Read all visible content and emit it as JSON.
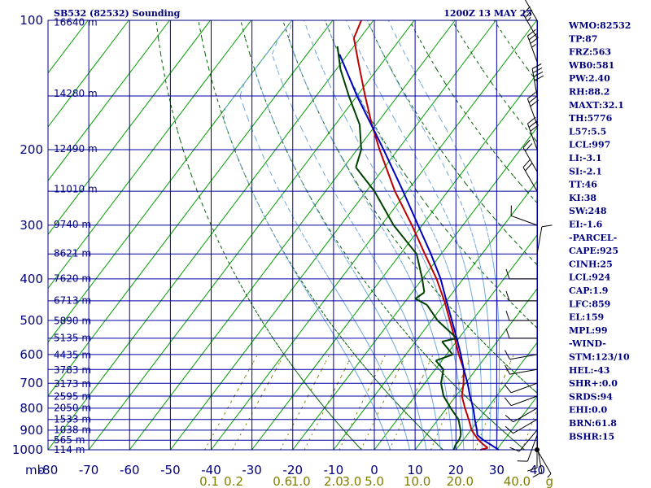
{
  "header": {
    "title": "SB532 (82532) Sounding",
    "valid_time": "1200Z 13 MAY 25"
  },
  "colors": {
    "frame": "#000080",
    "isobar": "#0000a0",
    "isotherm": "#00a000",
    "dry_adiabat": "#006000",
    "moist_adiabat": "#6fa8dc",
    "mixing_ratio": "#808000",
    "temperature": "#c00000",
    "dewpoint": "#004000",
    "parcel": "#0000c0",
    "wind": "#000000"
  },
  "indices": [
    "WMO:82532",
    "TP:87",
    "FRZ:563",
    "WB0:581",
    "PW:2.40",
    "RH:88.2",
    "MAXT:32.1",
    "TH:5776",
    "L57:5.5",
    "LCL:997",
    "LI:-3.1",
    "SI:-2.1",
    "TT:46",
    "KI:38",
    "SW:248",
    "EI:-1.6",
    "-PARCEL-",
    "CAPE:925",
    "CINH:25",
    "LCL:924",
    "CAP:1.9",
    "LFC:859",
    "EL:159",
    "MPL:99",
    "-WIND-",
    "STM:123/10",
    "HEL:-43",
    "SHR+:0.0",
    "SRDS:94",
    "EHI:0.0",
    "BRN:61.8",
    "BSHR:15"
  ],
  "chart_data": {
    "type": "skew-t log-p sounding",
    "title": "SB532 (82532) Sounding",
    "subtitle": "1200Z 13 MAY 25",
    "x_units_label": "mb",
    "y_axis": "pressure (mb), log scale, inverted",
    "ylim": [
      1000,
      100
    ],
    "xlim": [
      -80,
      40
    ],
    "pressure_ticks": [
      "100",
      "200",
      "300",
      "400",
      "500",
      "600",
      "700",
      "800",
      "900",
      "1000"
    ],
    "temperature_ticks": [
      "-80",
      "-70",
      "-60",
      "-50",
      "-40",
      "-30",
      "-20",
      "-10",
      "0",
      "10",
      "20",
      "30",
      "40"
    ],
    "height_labels": [
      {
        "p": 101,
        "label": "16640 m"
      },
      {
        "p": 148,
        "label": "14280 m"
      },
      {
        "p": 199,
        "label": "12490 m"
      },
      {
        "p": 247,
        "label": "11010 m"
      },
      {
        "p": 299,
        "label": "9740 m"
      },
      {
        "p": 349,
        "label": "8621 m"
      },
      {
        "p": 399,
        "label": "7620 m"
      },
      {
        "p": 449,
        "label": "6713 m"
      },
      {
        "p": 501,
        "label": "5890 m"
      },
      {
        "p": 549,
        "label": "5135 m"
      },
      {
        "p": 602,
        "label": "4435 m"
      },
      {
        "p": 652,
        "label": "3783 m"
      },
      {
        "p": 702,
        "label": "3173 m"
      },
      {
        "p": 752,
        "label": "2595 m"
      },
      {
        "p": 798,
        "label": "2050 m"
      },
      {
        "p": 850,
        "label": "1533 m"
      },
      {
        "p": 899,
        "label": "1038 m"
      },
      {
        "p": 949,
        "label": "565 m"
      },
      {
        "p": 1000,
        "label": "114 m"
      }
    ],
    "mixing_ratio_labels": [
      {
        "value": "0.1",
        "t": -40.5
      },
      {
        "value": "0.2",
        "t": -34.5
      },
      {
        "value": "0.6",
        "t": -22.5
      },
      {
        "value": "1.0",
        "t": -18
      },
      {
        "value": "2.0",
        "t": -10
      },
      {
        "value": "3.0",
        "t": -5.5
      },
      {
        "value": "5.0",
        "t": 0
      },
      {
        "value": "10.0",
        "t": 10.5
      },
      {
        "value": "20.0",
        "t": 21
      },
      {
        "value": "40.0",
        "t": 35
      }
    ],
    "mixing_ratio_unit": "g",
    "isotherms": [
      -200,
      -190,
      -180,
      -170,
      -160,
      -150,
      -140,
      -130,
      -120,
      -110,
      -100,
      -90,
      -80,
      -70,
      -60,
      -50,
      -40,
      -30,
      -20,
      -10,
      0,
      10,
      20,
      30,
      40
    ],
    "dry_adiabats_theta_K": [
      270,
      290,
      310,
      330,
      350,
      370,
      390,
      410,
      430,
      450,
      470,
      490
    ],
    "moist_adiabats_thetaE_K": [
      290,
      300,
      310,
      320,
      330,
      340,
      350,
      360,
      370,
      380
    ],
    "mixing_ratio_lines_gkg": [
      0.1,
      0.2,
      0.6,
      1,
      2,
      3,
      5,
      10,
      20,
      40
    ],
    "series": [
      {
        "name": "Temperature",
        "points": [
          {
            "p": 1000,
            "t": 26.0
          },
          {
            "p": 990,
            "t": 27.5
          },
          {
            "p": 975,
            "t": 26.0
          },
          {
            "p": 950,
            "t": 23.8
          },
          {
            "p": 925,
            "t": 22.0
          },
          {
            "p": 900,
            "t": 20.2
          },
          {
            "p": 850,
            "t": 17.5
          },
          {
            "p": 800,
            "t": 14.5
          },
          {
            "p": 750,
            "t": 11.5
          },
          {
            "p": 700,
            "t": 9.5
          },
          {
            "p": 650,
            "t": 7.0
          },
          {
            "p": 600,
            "t": 3.0
          },
          {
            "p": 550,
            "t": -1.0
          },
          {
            "p": 500,
            "t": -5.5
          },
          {
            "p": 450,
            "t": -10.5
          },
          {
            "p": 400,
            "t": -16.5
          },
          {
            "p": 350,
            "t": -24.0
          },
          {
            "p": 300,
            "t": -32.5
          },
          {
            "p": 250,
            "t": -43.0
          },
          {
            "p": 200,
            "t": -54.5
          },
          {
            "p": 175,
            "t": -61.0
          },
          {
            "p": 150,
            "t": -68.0
          },
          {
            "p": 125,
            "t": -76.0
          },
          {
            "p": 110,
            "t": -81.5
          },
          {
            "p": 100,
            "t": -83.0
          }
        ]
      },
      {
        "name": "Dewpoint",
        "points": [
          {
            "p": 1000,
            "t": 19.5
          },
          {
            "p": 975,
            "t": 19.0
          },
          {
            "p": 950,
            "t": 19.0
          },
          {
            "p": 925,
            "t": 18.5
          },
          {
            "p": 900,
            "t": 17.5
          },
          {
            "p": 850,
            "t": 15.0
          },
          {
            "p": 800,
            "t": 11.0
          },
          {
            "p": 750,
            "t": 7.0
          },
          {
            "p": 700,
            "t": 4.0
          },
          {
            "p": 650,
            "t": 2.0
          },
          {
            "p": 620,
            "t": -1.5
          },
          {
            "p": 600,
            "t": 1.5
          },
          {
            "p": 560,
            "t": -3.5
          },
          {
            "p": 550,
            "t": -0.5
          },
          {
            "p": 500,
            "t": -8.5
          },
          {
            "p": 460,
            "t": -14.0
          },
          {
            "p": 445,
            "t": -18.0
          },
          {
            "p": 430,
            "t": -17.0
          },
          {
            "p": 400,
            "t": -20.0
          },
          {
            "p": 350,
            "t": -26.0
          },
          {
            "p": 300,
            "t": -37.0
          },
          {
            "p": 250,
            "t": -48.0
          },
          {
            "p": 220,
            "t": -57.0
          },
          {
            "p": 200,
            "t": -59.0
          },
          {
            "p": 175,
            "t": -64.0
          },
          {
            "p": 150,
            "t": -72.0
          },
          {
            "p": 130,
            "t": -79.0
          },
          {
            "p": 115,
            "t": -84.0
          }
        ]
      },
      {
        "name": "Parcel",
        "points": [
          {
            "p": 1000,
            "t": 30.5
          },
          {
            "p": 950,
            "t": 25.0
          },
          {
            "p": 924,
            "t": 22.5
          },
          {
            "p": 900,
            "t": 21.5
          },
          {
            "p": 850,
            "t": 19.0
          },
          {
            "p": 800,
            "t": 16.5
          },
          {
            "p": 750,
            "t": 13.5
          },
          {
            "p": 700,
            "t": 10.5
          },
          {
            "p": 650,
            "t": 7.0
          },
          {
            "p": 600,
            "t": 3.5
          },
          {
            "p": 550,
            "t": -0.5
          },
          {
            "p": 500,
            "t": -5.0
          },
          {
            "p": 450,
            "t": -10.0
          },
          {
            "p": 400,
            "t": -15.5
          },
          {
            "p": 350,
            "t": -22.5
          },
          {
            "p": 300,
            "t": -31.0
          },
          {
            "p": 250,
            "t": -41.0
          },
          {
            "p": 200,
            "t": -53.5
          },
          {
            "p": 150,
            "t": -70.0
          },
          {
            "p": 120,
            "t": -82.0
          }
        ]
      }
    ],
    "winds": [
      {
        "p": 1000,
        "dir": 150,
        "spd": 5
      },
      {
        "p": 975,
        "dir": 170,
        "spd": 10
      },
      {
        "p": 950,
        "dir": 180,
        "spd": 10
      },
      {
        "p": 925,
        "dir": 200,
        "spd": 10
      },
      {
        "p": 900,
        "dir": 220,
        "spd": 10
      },
      {
        "p": 850,
        "dir": 240,
        "spd": 10
      },
      {
        "p": 800,
        "dir": 240,
        "spd": 10
      },
      {
        "p": 750,
        "dir": 250,
        "spd": 10
      },
      {
        "p": 700,
        "dir": 250,
        "spd": 10
      },
      {
        "p": 650,
        "dir": 260,
        "spd": 10
      },
      {
        "p": 600,
        "dir": 260,
        "spd": 10
      },
      {
        "p": 550,
        "dir": 270,
        "spd": 10
      },
      {
        "p": 500,
        "dir": 270,
        "spd": 10
      },
      {
        "p": 450,
        "dir": 270,
        "spd": 10
      },
      {
        "p": 400,
        "dir": 270,
        "spd": 10
      },
      {
        "p": 350,
        "dir": 10,
        "spd": 10
      },
      {
        "p": 300,
        "dir": 290,
        "spd": 10
      },
      {
        "p": 250,
        "dir": 330,
        "spd": 20
      },
      {
        "p": 225,
        "dir": 330,
        "spd": 20
      },
      {
        "p": 200,
        "dir": 340,
        "spd": 30
      },
      {
        "p": 175,
        "dir": 340,
        "spd": 30
      },
      {
        "p": 150,
        "dir": 350,
        "spd": 40
      },
      {
        "p": 125,
        "dir": 340,
        "spd": 35
      },
      {
        "p": 110,
        "dir": 330,
        "spd": 25
      },
      {
        "p": 100,
        "dir": 330,
        "spd": 20
      }
    ]
  }
}
